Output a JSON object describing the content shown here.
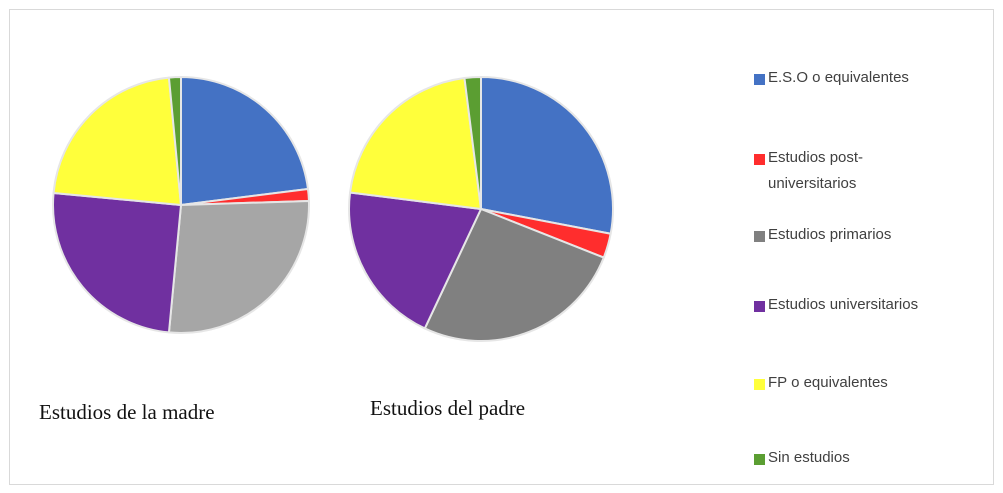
{
  "chart_data": [
    {
      "type": "pie",
      "title": "Estudios de la madre",
      "categories": [
        "E.S.O o equivalentes",
        "Estudios post-universitarios",
        "Estudios primarios",
        "Estudios universitarios",
        "FP o equivalentes",
        "Sin estudios"
      ],
      "values": [
        23,
        1.5,
        27,
        25,
        22,
        1.5
      ],
      "colors": [
        "#4472c4",
        "#ff2d2d",
        "#a6a6a6",
        "#7030a0",
        "#ffff3b",
        "#5b9e32"
      ]
    },
    {
      "type": "pie",
      "title": "Estudios del padre",
      "categories": [
        "E.S.O o equivalentes",
        "Estudios post-universitarios",
        "Estudios primarios",
        "Estudios universitarios",
        "FP o equivalentes",
        "Sin estudios"
      ],
      "values": [
        28,
        3,
        26,
        20,
        21,
        2
      ],
      "colors": [
        "#4472c4",
        "#ff2d2d",
        "#808080",
        "#7030a0",
        "#ffff3b",
        "#5b9e32"
      ]
    }
  ],
  "legend": {
    "placement": "right",
    "items": [
      {
        "label": "E.S.O o equivalentes",
        "color": "#4472c4"
      },
      {
        "label": "Estudios post-universitarios",
        "color": "#ff2d2d"
      },
      {
        "label": "Estudios primarios",
        "color": "#808080"
      },
      {
        "label": "Estudios universitarios",
        "color": "#7030a0"
      },
      {
        "label": "FP o equivalentes",
        "color": "#ffff3b"
      },
      {
        "label": "Sin estudios",
        "color": "#5b9e32"
      }
    ]
  }
}
